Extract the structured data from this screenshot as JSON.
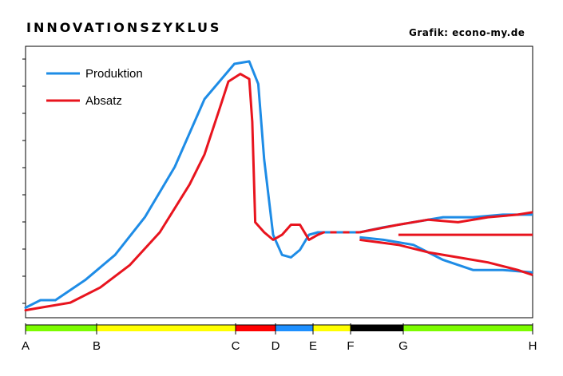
{
  "header": {
    "title": "INNOVATIONSZYKLUS",
    "credit": "Grafik: econo-my.de"
  },
  "chart_data": {
    "type": "line",
    "title": "INNOVATIONSZYKLUS",
    "xlabel": "",
    "ylabel": "",
    "grid": false,
    "legend": "top-left",
    "y_axis_labels": false,
    "phases": [
      {
        "label": "A",
        "color": "#7cfc00"
      },
      {
        "label": "B",
        "color": "#ffff00"
      },
      {
        "label": "C",
        "color": "#ff0000"
      },
      {
        "label": "D",
        "color": "#1e90ff"
      },
      {
        "label": "E",
        "color": "#ffff00"
      },
      {
        "label": "F",
        "color": "#000000"
      },
      {
        "label": "G",
        "color": "#7cfc00"
      },
      {
        "label": "H",
        "color": null
      }
    ],
    "series": [
      {
        "name": "Produktion",
        "color": "#1e8ce6",
        "points": [
          [
            0,
            1
          ],
          [
            0.05,
            4
          ],
          [
            0.1,
            4
          ],
          [
            0.2,
            12
          ],
          [
            0.3,
            22
          ],
          [
            0.4,
            37
          ],
          [
            0.5,
            57
          ],
          [
            0.6,
            84
          ],
          [
            0.7,
            98
          ],
          [
            0.75,
            99
          ],
          [
            0.78,
            90
          ],
          [
            0.8,
            60
          ],
          [
            0.83,
            30
          ],
          [
            0.86,
            22
          ],
          [
            0.89,
            21
          ],
          [
            0.92,
            24
          ],
          [
            0.95,
            30
          ],
          [
            0.98,
            31
          ],
          [
            1.0,
            31
          ]
        ],
        "continuation_dashed": [
          [
            1.0,
            31
          ],
          [
            1.12,
            31
          ]
        ],
        "fan_upper": [
          [
            1.12,
            31
          ],
          [
            1.2,
            33
          ],
          [
            1.3,
            35
          ],
          [
            1.4,
            37
          ],
          [
            1.5,
            37
          ],
          [
            1.6,
            38
          ],
          [
            1.7,
            38
          ]
        ],
        "fan_lower": [
          [
            1.12,
            29
          ],
          [
            1.2,
            28
          ],
          [
            1.3,
            26
          ],
          [
            1.4,
            20
          ],
          [
            1.5,
            16
          ],
          [
            1.6,
            16
          ],
          [
            1.7,
            15
          ]
        ]
      },
      {
        "name": "Absatz",
        "color": "#e8141e",
        "points": [
          [
            0,
            0
          ],
          [
            0.05,
            1
          ],
          [
            0.15,
            3
          ],
          [
            0.25,
            9
          ],
          [
            0.35,
            18
          ],
          [
            0.45,
            31
          ],
          [
            0.55,
            50
          ],
          [
            0.6,
            62
          ],
          [
            0.65,
            80
          ],
          [
            0.68,
            91
          ],
          [
            0.72,
            94
          ],
          [
            0.75,
            92
          ],
          [
            0.76,
            75
          ],
          [
            0.77,
            35
          ],
          [
            0.8,
            31
          ],
          [
            0.83,
            28
          ],
          [
            0.86,
            30
          ],
          [
            0.89,
            34
          ],
          [
            0.92,
            34
          ],
          [
            0.95,
            28
          ],
          [
            0.98,
            30
          ],
          [
            1.0,
            31
          ]
        ],
        "continuation_dashed": [
          [
            1.0,
            31
          ],
          [
            1.12,
            31
          ]
        ],
        "fan_upper": [
          [
            1.12,
            31
          ],
          [
            1.25,
            34
          ],
          [
            1.35,
            36
          ],
          [
            1.45,
            35
          ],
          [
            1.55,
            37
          ],
          [
            1.65,
            38
          ],
          [
            1.7,
            39
          ]
        ],
        "fan_middle": [
          [
            1.25,
            30
          ],
          [
            1.4,
            30
          ],
          [
            1.55,
            30
          ],
          [
            1.7,
            30
          ]
        ],
        "fan_lower": [
          [
            1.12,
            28
          ],
          [
            1.25,
            26
          ],
          [
            1.35,
            23
          ],
          [
            1.45,
            21
          ],
          [
            1.55,
            19
          ],
          [
            1.65,
            16
          ],
          [
            1.7,
            14
          ]
        ]
      }
    ]
  }
}
